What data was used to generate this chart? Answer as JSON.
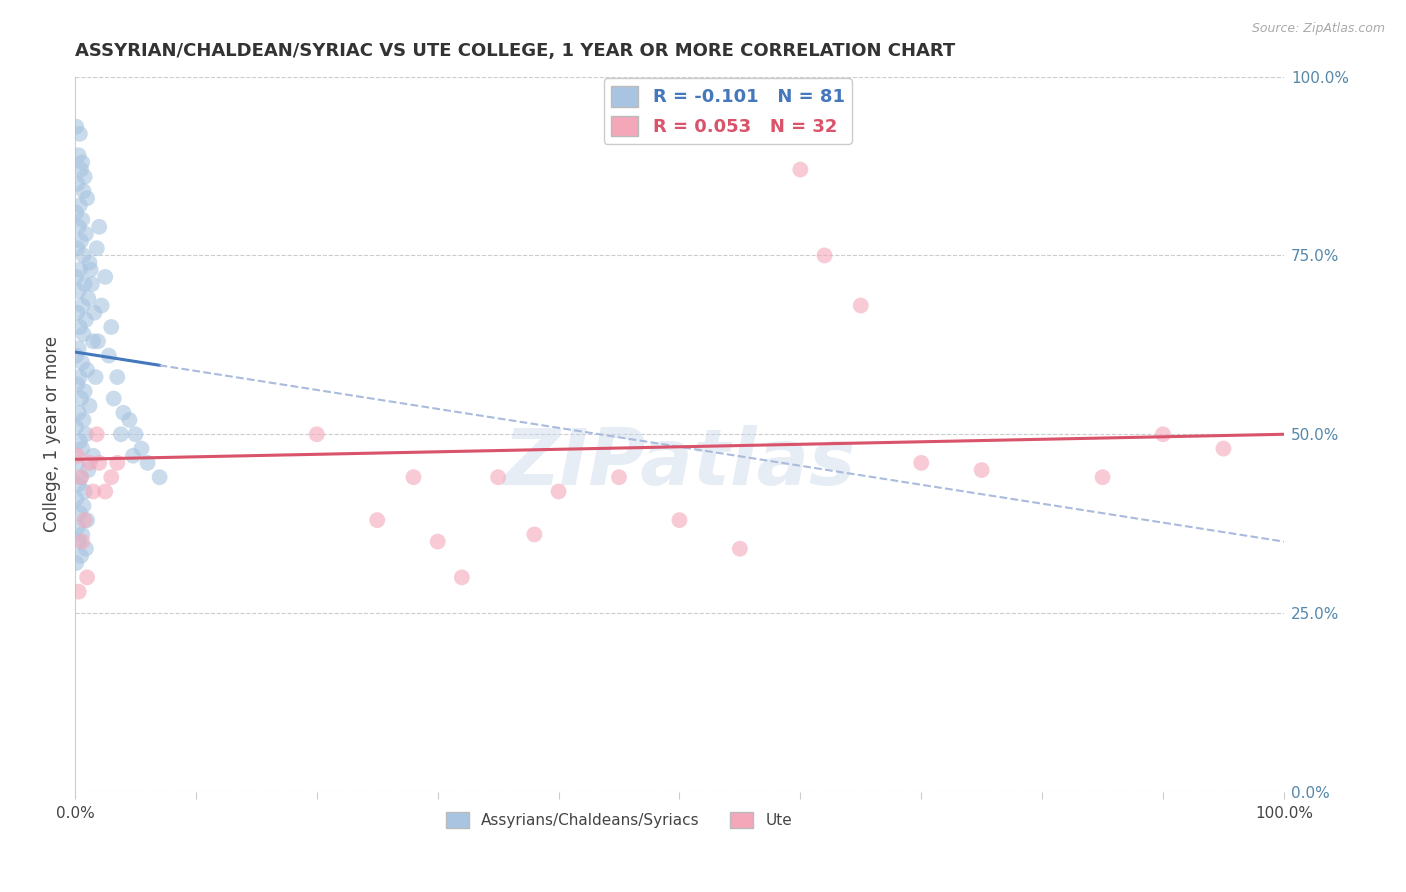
{
  "title": "ASSYRIAN/CHALDEAN/SYRIAC VS UTE COLLEGE, 1 YEAR OR MORE CORRELATION CHART",
  "source_text": "Source: ZipAtlas.com",
  "ylabel": "College, 1 year or more",
  "right_ytick_labels": [
    "0.0%",
    "25.0%",
    "50.0%",
    "75.0%",
    "100.0%"
  ],
  "right_ytick_vals": [
    0,
    0.25,
    0.5,
    0.75,
    1.0
  ],
  "xlim": [
    0,
    1.0
  ],
  "ylim": [
    0,
    1.0
  ],
  "watermark": "ZIPatlas",
  "legend_blue_label": "R = -0.101   N = 81",
  "legend_pink_label": "R = 0.053   N = 32",
  "legend_blue_color": "#a8c4e0",
  "legend_pink_color": "#f4a7b9",
  "bottom_legend_blue": "Assyrians/Chaldeans/Syriacs",
  "bottom_legend_pink": "Ute",
  "blue_line_color": "#4477bb",
  "pink_line_color": "#d9536a",
  "dashed_line_color": "#aabbdd",
  "title_color": "#333333",
  "axis_label_color": "#444444",
  "right_axis_color": "#5588aa",
  "grid_color": "#cccccc",
  "background_color": "#ffffff",
  "blue_scatter": [
    [
      0.001,
      0.93
    ],
    [
      0.004,
      0.92
    ],
    [
      0.003,
      0.89
    ],
    [
      0.006,
      0.88
    ],
    [
      0.005,
      0.87
    ],
    [
      0.008,
      0.86
    ],
    [
      0.002,
      0.85
    ],
    [
      0.007,
      0.84
    ],
    [
      0.01,
      0.83
    ],
    [
      0.004,
      0.82
    ],
    [
      0.001,
      0.81
    ],
    [
      0.006,
      0.8
    ],
    [
      0.003,
      0.79
    ],
    [
      0.009,
      0.78
    ],
    [
      0.005,
      0.77
    ],
    [
      0.002,
      0.76
    ],
    [
      0.007,
      0.75
    ],
    [
      0.012,
      0.74
    ],
    [
      0.004,
      0.73
    ],
    [
      0.001,
      0.72
    ],
    [
      0.008,
      0.71
    ],
    [
      0.003,
      0.7
    ],
    [
      0.011,
      0.69
    ],
    [
      0.006,
      0.68
    ],
    [
      0.002,
      0.67
    ],
    [
      0.009,
      0.66
    ],
    [
      0.004,
      0.65
    ],
    [
      0.007,
      0.64
    ],
    [
      0.015,
      0.63
    ],
    [
      0.003,
      0.62
    ],
    [
      0.001,
      0.61
    ],
    [
      0.006,
      0.6
    ],
    [
      0.01,
      0.59
    ],
    [
      0.004,
      0.58
    ],
    [
      0.002,
      0.57
    ],
    [
      0.008,
      0.56
    ],
    [
      0.005,
      0.55
    ],
    [
      0.012,
      0.54
    ],
    [
      0.003,
      0.53
    ],
    [
      0.007,
      0.52
    ],
    [
      0.001,
      0.51
    ],
    [
      0.009,
      0.5
    ],
    [
      0.004,
      0.49
    ],
    [
      0.006,
      0.48
    ],
    [
      0.015,
      0.47
    ],
    [
      0.002,
      0.46
    ],
    [
      0.011,
      0.45
    ],
    [
      0.005,
      0.44
    ],
    [
      0.003,
      0.43
    ],
    [
      0.008,
      0.42
    ],
    [
      0.001,
      0.41
    ],
    [
      0.007,
      0.4
    ],
    [
      0.004,
      0.39
    ],
    [
      0.01,
      0.38
    ],
    [
      0.002,
      0.37
    ],
    [
      0.006,
      0.36
    ],
    [
      0.003,
      0.35
    ],
    [
      0.009,
      0.34
    ],
    [
      0.005,
      0.33
    ],
    [
      0.001,
      0.32
    ],
    [
      0.02,
      0.79
    ],
    [
      0.018,
      0.76
    ],
    [
      0.025,
      0.72
    ],
    [
      0.022,
      0.68
    ],
    [
      0.03,
      0.65
    ],
    [
      0.028,
      0.61
    ],
    [
      0.035,
      0.58
    ],
    [
      0.032,
      0.55
    ],
    [
      0.04,
      0.53
    ],
    [
      0.038,
      0.5
    ],
    [
      0.045,
      0.52
    ],
    [
      0.05,
      0.5
    ],
    [
      0.048,
      0.47
    ],
    [
      0.055,
      0.48
    ],
    [
      0.06,
      0.46
    ],
    [
      0.07,
      0.44
    ],
    [
      0.016,
      0.67
    ],
    [
      0.014,
      0.71
    ],
    [
      0.019,
      0.63
    ],
    [
      0.017,
      0.58
    ],
    [
      0.013,
      0.73
    ]
  ],
  "pink_scatter": [
    [
      0.002,
      0.47
    ],
    [
      0.005,
      0.44
    ],
    [
      0.008,
      0.38
    ],
    [
      0.01,
      0.3
    ],
    [
      0.012,
      0.46
    ],
    [
      0.015,
      0.42
    ],
    [
      0.006,
      0.35
    ],
    [
      0.003,
      0.28
    ],
    [
      0.018,
      0.5
    ],
    [
      0.02,
      0.46
    ],
    [
      0.025,
      0.42
    ],
    [
      0.03,
      0.44
    ],
    [
      0.035,
      0.46
    ],
    [
      0.2,
      0.5
    ],
    [
      0.25,
      0.38
    ],
    [
      0.28,
      0.44
    ],
    [
      0.3,
      0.35
    ],
    [
      0.32,
      0.3
    ],
    [
      0.35,
      0.44
    ],
    [
      0.38,
      0.36
    ],
    [
      0.4,
      0.42
    ],
    [
      0.45,
      0.44
    ],
    [
      0.5,
      0.38
    ],
    [
      0.55,
      0.34
    ],
    [
      0.6,
      0.87
    ],
    [
      0.62,
      0.75
    ],
    [
      0.65,
      0.68
    ],
    [
      0.7,
      0.46
    ],
    [
      0.75,
      0.45
    ],
    [
      0.85,
      0.44
    ],
    [
      0.9,
      0.5
    ],
    [
      0.95,
      0.48
    ]
  ],
  "blue_trend_x0": 0.0,
  "blue_trend_y0": 0.615,
  "blue_trend_x1": 1.0,
  "blue_trend_y1": 0.35,
  "blue_solid_xend": 0.07,
  "pink_trend_x0": 0.0,
  "pink_trend_y0": 0.465,
  "pink_trend_x1": 1.0,
  "pink_trend_y1": 0.5
}
